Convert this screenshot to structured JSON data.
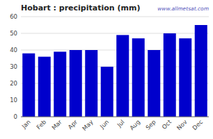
{
  "chart_data": {
    "type": "bar",
    "title": "Hobart : precipitation (mm)",
    "categories": [
      "Jan",
      "Feb",
      "Mar",
      "Apr",
      "May",
      "Jun",
      "Jul",
      "Aug",
      "Sep",
      "Oct",
      "Nov",
      "Dec"
    ],
    "values": [
      38,
      36,
      39,
      40,
      40,
      30,
      49,
      47,
      40,
      50,
      47,
      55
    ],
    "color": "#0000cc",
    "ylim": [
      0,
      60
    ],
    "yticks": [
      0,
      10,
      20,
      30,
      40,
      50,
      60
    ],
    "grid": true,
    "annotations": [
      "www.allmetsat.com"
    ]
  }
}
